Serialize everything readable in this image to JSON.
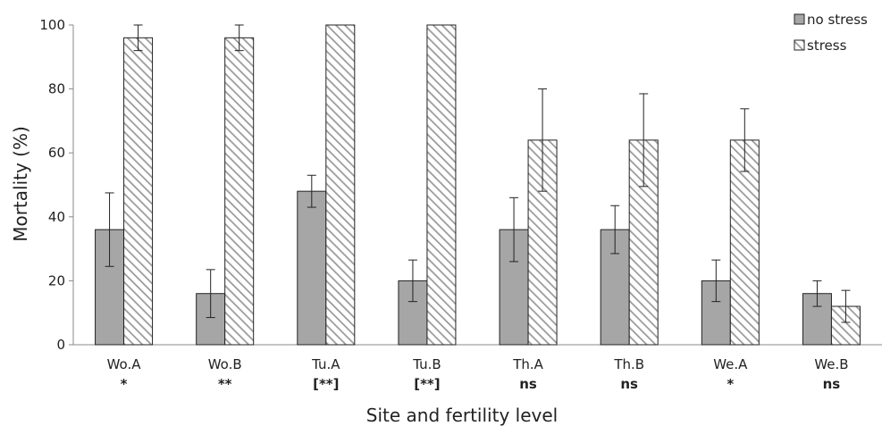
{
  "chart_data": {
    "type": "bar",
    "title": "",
    "xlabel": "Site and fertility level",
    "ylabel": "Mortality (%)",
    "ylim": [
      0,
      100
    ],
    "yticks": [
      0,
      20,
      40,
      60,
      80,
      100
    ],
    "grid": false,
    "legend_position": "top-right",
    "categories": [
      "Wo.A",
      "Wo.B",
      "Tu.A",
      "Tu.B",
      "Th.A",
      "Th.B",
      "We.A",
      "We.B"
    ],
    "significance": [
      "*",
      "**",
      "[**]",
      "[**]",
      "ns",
      "ns",
      "*",
      "ns"
    ],
    "series": [
      {
        "name": "no stress",
        "color": "#a6a6a6",
        "pattern": "solid",
        "values": [
          36,
          16,
          48,
          20,
          36,
          36,
          20,
          16
        ],
        "error": [
          11.5,
          7.5,
          5,
          6.5,
          10,
          7.5,
          6.5,
          4
        ]
      },
      {
        "name": "stress",
        "color": "#a6a6a6",
        "pattern": "diagonal-hatch",
        "values": [
          96,
          96,
          100,
          100,
          64,
          64,
          64,
          12
        ],
        "error": [
          4,
          4,
          0,
          0,
          16,
          14.5,
          9.8,
          5
        ]
      }
    ]
  }
}
